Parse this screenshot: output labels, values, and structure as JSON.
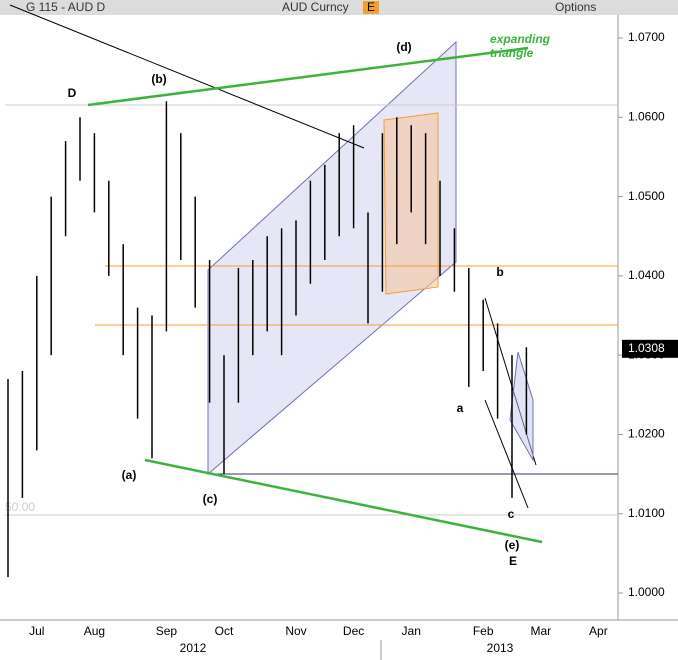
{
  "header": {
    "ticker": "G 115 - AUD D",
    "security": "AUD Curncy",
    "flag": "E",
    "options": "Options"
  },
  "chart_data": {
    "type": "ohlc",
    "color": "#000000",
    "categories": [
      null,
      null,
      "Jul",
      null,
      null,
      null,
      "Aug",
      null,
      null,
      null,
      null,
      "Sep",
      null,
      null,
      null,
      "Oct",
      null,
      null,
      null,
      null,
      "Nov",
      null,
      null,
      null,
      "Dec",
      null,
      null,
      null,
      "Jan",
      null,
      null,
      null,
      null,
      "Feb",
      null,
      null,
      null,
      "Mar",
      null,
      null,
      null,
      "Apr",
      null
    ],
    "high": [
      1.027,
      1.028,
      1.04,
      1.05,
      1.057,
      1.06,
      1.058,
      1.052,
      1.044,
      1.036,
      1.035,
      1.062,
      1.058,
      1.05,
      1.042,
      1.03,
      1.041,
      1.042,
      1.045,
      1.046,
      1.047,
      1.052,
      1.054,
      1.058,
      1.059,
      1.048,
      1.058,
      1.06,
      1.059,
      1.058,
      1.052,
      1.046,
      1.041,
      1.037,
      1.034,
      1.03,
      1.031,
      null,
      null,
      null,
      null,
      null,
      null
    ],
    "low": [
      1.002,
      1.012,
      1.018,
      1.03,
      1.045,
      1.052,
      1.048,
      1.04,
      1.03,
      1.022,
      1.017,
      1.033,
      1.042,
      1.036,
      1.024,
      1.015,
      1.024,
      1.03,
      1.033,
      1.03,
      1.035,
      1.039,
      1.042,
      1.045,
      1.046,
      1.034,
      1.038,
      1.044,
      1.048,
      1.044,
      1.04,
      1.038,
      1.026,
      1.028,
      1.022,
      1.012,
      1.02,
      null,
      null,
      null,
      null,
      null,
      null
    ],
    "years": [
      "2012",
      "2013"
    ],
    "last_price": 1.0308,
    "faint_label": "50.00",
    "ylim": [
      0.9966,
      1.0729
    ],
    "yticks": [
      {
        "value": 1.0,
        "label": "1.0000"
      },
      {
        "value": 1.01,
        "label": "1.0100"
      },
      {
        "value": 1.02,
        "label": "1.0200"
      },
      {
        "value": 1.03,
        "label": "1.0300"
      },
      {
        "value": 1.04,
        "label": "1.0400"
      },
      {
        "value": 1.05,
        "label": "1.0500"
      },
      {
        "value": 1.06,
        "label": "1.0600"
      },
      {
        "value": 1.07,
        "label": "1.0700"
      }
    ],
    "annotations": {
      "D": "D",
      "b_paren": "(b)",
      "d_paren": "(d)",
      "triangle": "expanding triangle",
      "b": "b",
      "a": "a",
      "c": "c",
      "a_paren": "(a)",
      "c_paren": "(c)",
      "e_paren": "(e)",
      "E": "E"
    }
  }
}
